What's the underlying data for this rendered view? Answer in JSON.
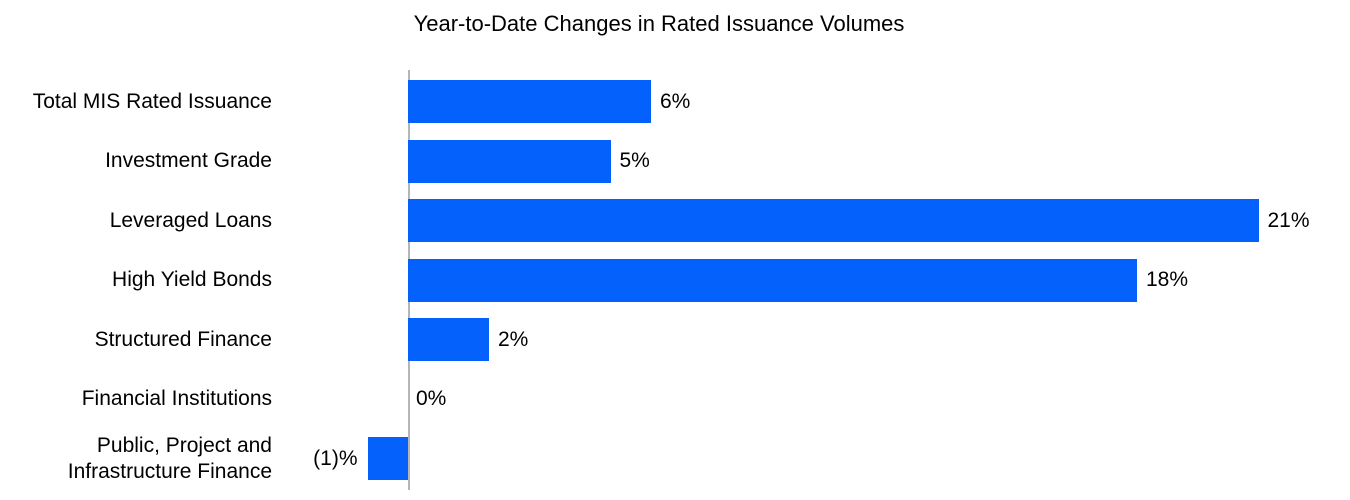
{
  "title": "Year-to-Date Changes in Rated Issuance Volumes",
  "chart_data": {
    "type": "bar",
    "orientation": "horizontal",
    "title": "Year-to-Date Changes in Rated Issuance Volumes",
    "categories": [
      "Total MIS Rated Issuance",
      "Investment Grade",
      "Leveraged Loans",
      "High Yield Bonds",
      "Structured Finance",
      "Financial Institutions",
      "Public, Project and\nInfrastructure Finance"
    ],
    "values": [
      6,
      5,
      21,
      18,
      2,
      0,
      -1
    ],
    "value_labels": [
      "6%",
      "5%",
      "21%",
      "18%",
      "2%",
      "0%",
      "(1)%"
    ],
    "xlabel": "",
    "ylabel": "",
    "xlim": [
      -2,
      23
    ],
    "unit": "percent",
    "grid": false,
    "legend": false,
    "bar_color": "#0561fb",
    "axis_color": "#b3b6b9",
    "text_color": "#000000"
  }
}
